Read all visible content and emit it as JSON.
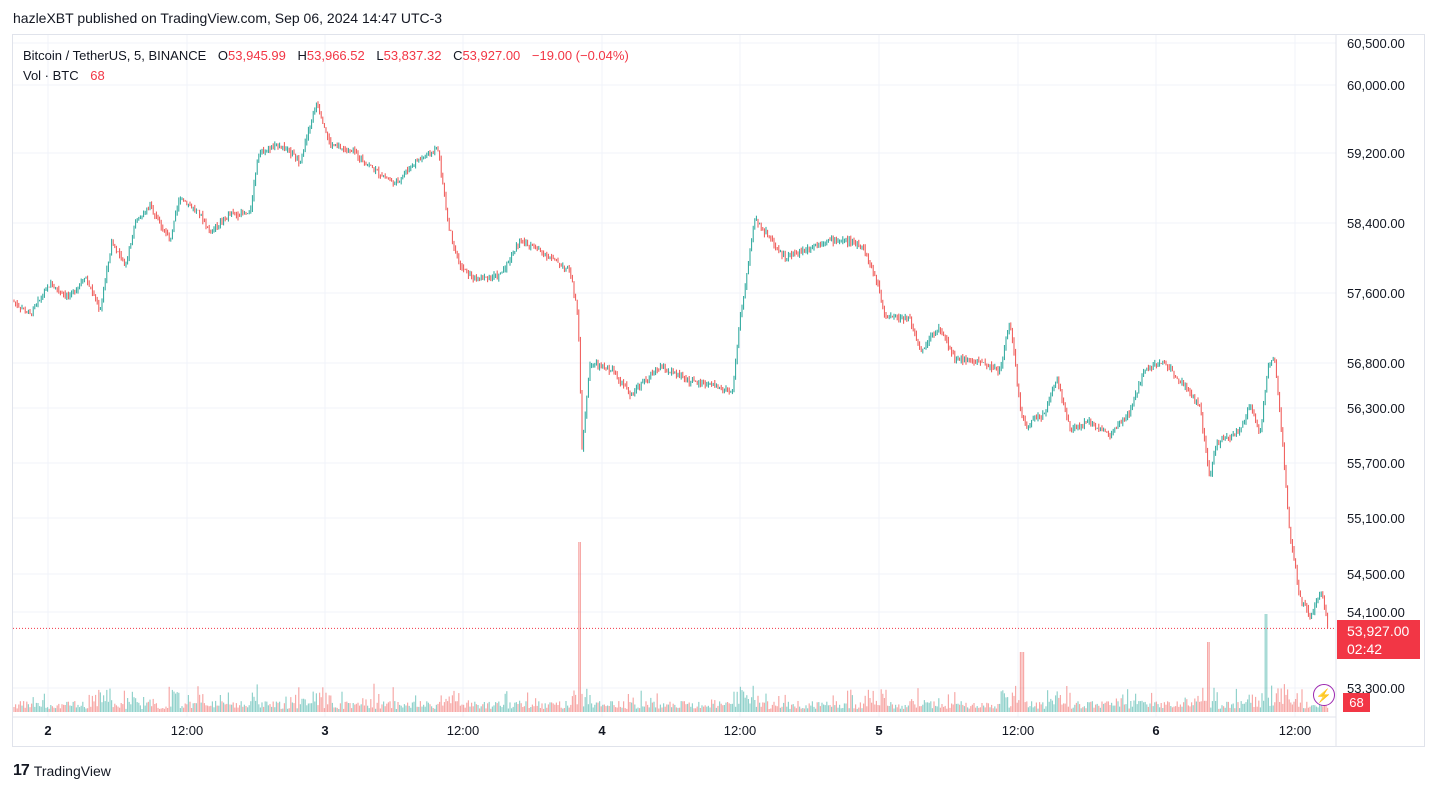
{
  "header": {
    "publisher": "hazleXBT published on TradingView.com, Sep 06, 2024 14:47 UTC-3"
  },
  "legend": {
    "symbol": "Bitcoin / TetherUS, 5, BINANCE",
    "o_label": "O",
    "o_value": "53,945.99",
    "h_label": "H",
    "h_value": "53,966.52",
    "l_label": "L",
    "l_value": "53,837.32",
    "c_label": "C",
    "c_value": "53,927.00",
    "change": "−19.00 (−0.04%)",
    "vol_label": "Vol · BTC",
    "vol_value": "68"
  },
  "price_tag": {
    "price": "53,927.00",
    "countdown": "02:42"
  },
  "volume_tag": "68",
  "footer": {
    "brand": "TradingView"
  },
  "colors": {
    "up": "#26a69a",
    "down": "#ef5350",
    "accent": "#f23645",
    "grid": "#f0f3fa",
    "border": "#e0e3eb"
  },
  "icons": {
    "logo": "tradingview-logo-icon",
    "alert": "lightning-icon"
  },
  "chart_data": {
    "type": "candlestick",
    "title": "Bitcoin / TetherUS, 5, BINANCE",
    "yaxis_ticks": [
      "60,500.00",
      "60,000.00",
      "59,200.00",
      "58,400.00",
      "57,600.00",
      "56,800.00",
      "56,300.00",
      "55,700.00",
      "55,100.00",
      "54,500.00",
      "54,100.00",
      "53,300.00"
    ],
    "ylim": [
      53000,
      60700
    ],
    "xaxis_ticks": [
      "2",
      "12:00",
      "3",
      "12:00",
      "4",
      "12:00",
      "5",
      "12:00",
      "6",
      "12:00"
    ],
    "series": [
      {
        "name": "price",
        "x": [
          "2",
          "12:00",
          "3",
          "12:00",
          "4",
          "12:00",
          "5",
          "12:00",
          "6",
          "12:00"
        ],
        "values": [
          57400,
          58200,
          59200,
          57900,
          56700,
          56800,
          57000,
          56400,
          55900,
          53927
        ]
      }
    ],
    "last_price": 53927.0,
    "last_volume": 68
  }
}
